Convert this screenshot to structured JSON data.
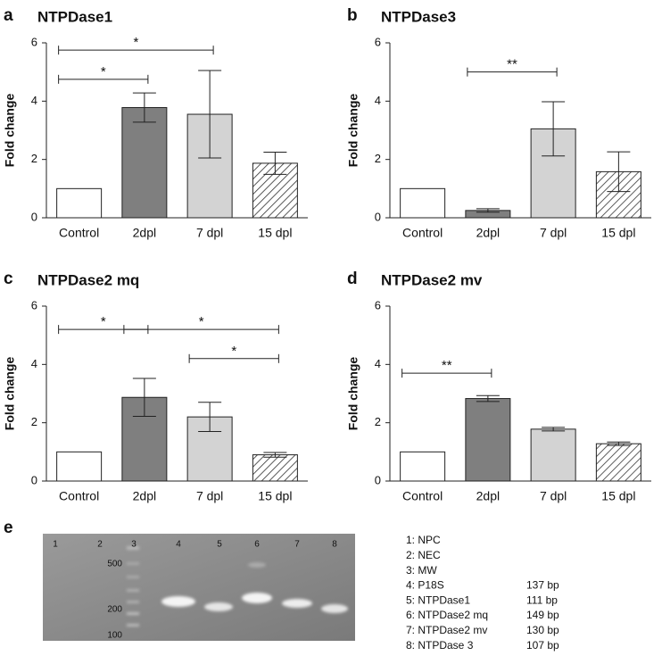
{
  "chart_data": [
    {
      "type": "bar",
      "label": "a",
      "title": "NTPDase1",
      "ylabel": "Fold change",
      "categories": [
        "Control",
        "2dpl",
        "7 dpl",
        "15 dpl"
      ],
      "values": [
        1,
        3.78,
        3.55,
        1.87
      ],
      "errors": [
        null,
        0.5,
        1.5,
        0.38
      ],
      "colors": [
        "#ffffff",
        "#7f7f7f",
        "#d3d3d3",
        "#ffffff"
      ],
      "hatched": [
        false,
        false,
        false,
        true
      ],
      "ylim": [
        0,
        6
      ],
      "yticks": [
        0,
        2,
        4,
        6
      ],
      "annotations": [
        {
          "text": "*",
          "between": [
            "Control",
            "2dpl"
          ],
          "y": 4.75
        },
        {
          "text": "*",
          "between": [
            "Control",
            "7 dpl"
          ],
          "y": 5.75
        }
      ]
    },
    {
      "type": "bar",
      "label": "b",
      "title": "NTPDase3",
      "ylabel": "Fold change",
      "categories": [
        "Control",
        "2dpl",
        "7 dpl",
        "15 dpl"
      ],
      "values": [
        1,
        0.25,
        3.05,
        1.58
      ],
      "errors": [
        null,
        0.06,
        0.93,
        0.68
      ],
      "colors": [
        "#ffffff",
        "#7f7f7f",
        "#d3d3d3",
        "#ffffff"
      ],
      "hatched": [
        false,
        false,
        false,
        true
      ],
      "ylim": [
        0,
        6
      ],
      "yticks": [
        0,
        2,
        4,
        6
      ],
      "annotations": [
        {
          "text": "**",
          "between": [
            "2dpl",
            "7 dpl"
          ],
          "y": 5.0
        }
      ]
    },
    {
      "type": "bar",
      "label": "c",
      "title": "NTPDase2 mq",
      "ylabel": "Fold change",
      "categories": [
        "Control",
        "2dpl",
        "7 dpl",
        "15 dpl"
      ],
      "values": [
        1,
        2.87,
        2.2,
        0.9
      ],
      "errors": [
        null,
        0.65,
        0.5,
        0.08
      ],
      "colors": [
        "#ffffff",
        "#7f7f7f",
        "#d3d3d3",
        "#ffffff"
      ],
      "hatched": [
        false,
        false,
        false,
        true
      ],
      "ylim": [
        0,
        6
      ],
      "yticks": [
        0,
        2,
        4,
        6
      ],
      "annotations": [
        {
          "text": "*",
          "between": [
            "Control",
            "2dpl"
          ],
          "y": 5.2
        },
        {
          "text": "*",
          "between": [
            "2dpl",
            "15 dpl"
          ],
          "y": 5.2
        },
        {
          "text": "*",
          "between": [
            "7 dpl",
            "15 dpl"
          ],
          "y": 4.2
        }
      ]
    },
    {
      "type": "bar",
      "label": "d",
      "title": "NTPDase2 mv",
      "ylabel": "Fold change",
      "categories": [
        "Control",
        "2dpl",
        "7 dpl",
        "15 dpl"
      ],
      "values": [
        1,
        2.83,
        1.78,
        1.28
      ],
      "errors": [
        null,
        0.1,
        0.06,
        0.06
      ],
      "colors": [
        "#ffffff",
        "#7f7f7f",
        "#d3d3d3",
        "#ffffff"
      ],
      "hatched": [
        false,
        false,
        false,
        true
      ],
      "ylim": [
        0,
        6
      ],
      "yticks": [
        0,
        2,
        4,
        6
      ],
      "annotations": [
        {
          "text": "**",
          "between": [
            "Control",
            "2dpl"
          ],
          "y": 3.7
        }
      ]
    }
  ],
  "gel": {
    "label": "e",
    "lanes": [
      "1",
      "2",
      "3",
      "4",
      "5",
      "6",
      "7",
      "8"
    ],
    "markers": [
      "500",
      "200",
      "100"
    ],
    "legend": [
      {
        "name": "1: NPC"
      },
      {
        "name": "2: NEC"
      },
      {
        "name": "3: MW"
      },
      {
        "name": "4: P18S",
        "size": "137 bp"
      },
      {
        "name": "5: NTPDase1",
        "size": "111 bp"
      },
      {
        "name": "6: NTPDase2 mq",
        "size": "149 bp"
      },
      {
        "name": "7: NTPDase2 mv",
        "size": "130 bp"
      },
      {
        "name": "8: NTPDase 3",
        "size": "107 bp"
      }
    ]
  }
}
